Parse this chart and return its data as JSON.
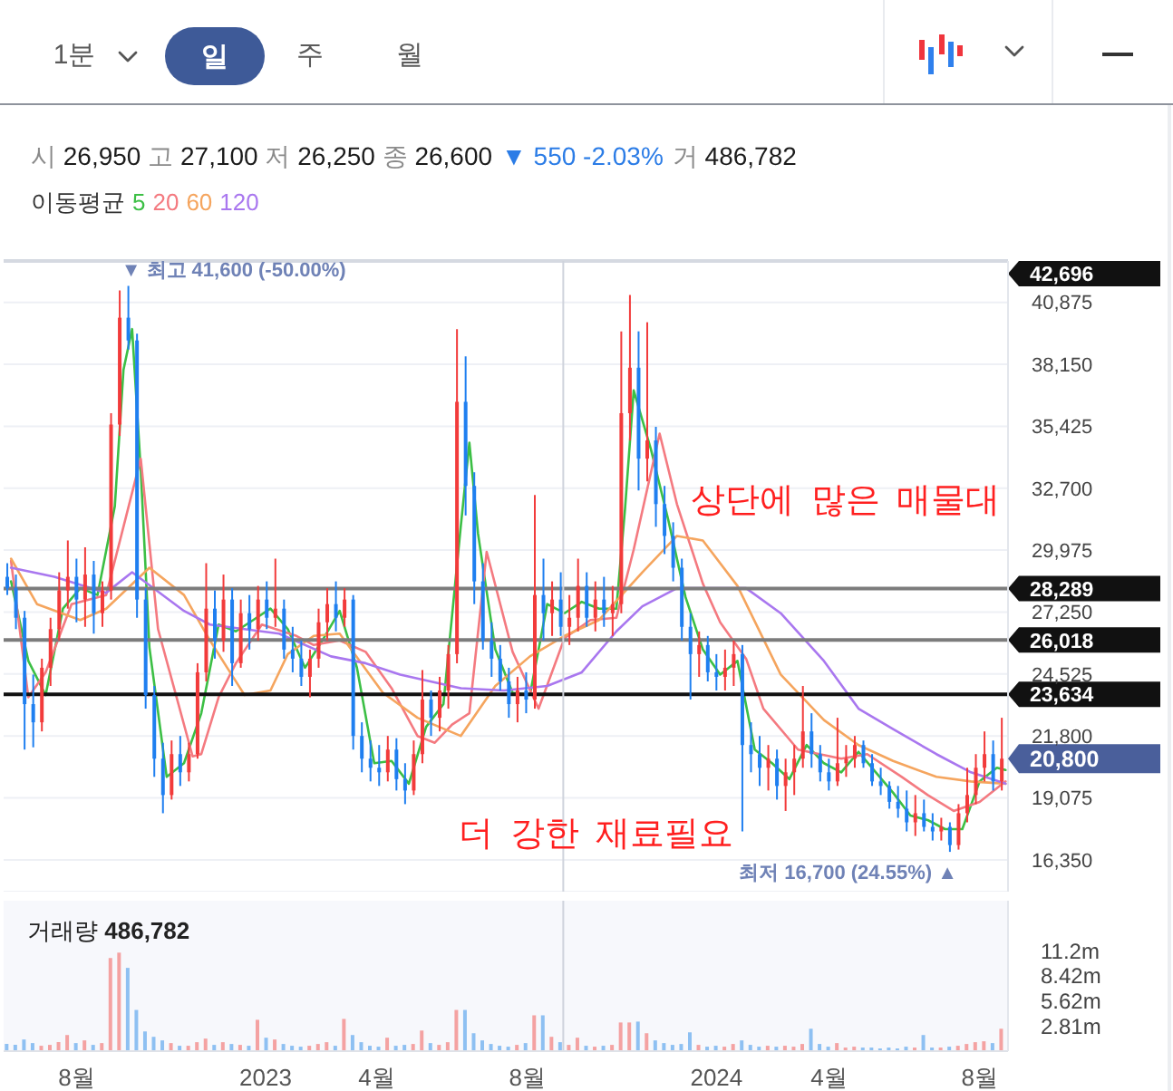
{
  "chart_data": [
    {
      "type": "other",
      "annotations": [
        "1분",
        "일",
        "주",
        "월"
      ]
    },
    {
      "type": "candlestick",
      "subtitle": "시 26,950 고 27,100 저 26,250 종 26,600",
      "legend_title": "이동평균",
      "legend": "top left",
      "x": [
        "2022-06-06",
        "2022-06-13",
        "2022-06-20",
        "2022-06-27",
        "2022-07-04",
        "2022-07-11",
        "2022-07-18",
        "2022-07-25",
        "2022-08-01",
        "2022-08-08",
        "2022-08-15",
        "2022-08-22",
        "2022-08-29",
        "2022-09-05",
        "2022-09-12",
        "2022-09-19",
        "2022-09-26",
        "2022-10-03",
        "2022-10-10",
        "2022-10-17",
        "2022-10-24",
        "2022-10-31",
        "2022-11-07",
        "2022-11-14",
        "2022-11-21",
        "2022-11-28",
        "2022-12-05",
        "2022-12-12",
        "2022-12-19",
        "2022-12-26",
        "2023-01-02",
        "2023-01-09",
        "2023-01-16",
        "2023-01-23",
        "2023-01-30",
        "2023-02-06",
        "2023-02-13",
        "2023-02-20",
        "2023-02-27",
        "2023-03-06",
        "2023-03-13",
        "2023-03-20",
        "2023-03-27",
        "2023-04-03",
        "2023-04-10",
        "2023-04-17",
        "2023-04-24",
        "2023-05-01",
        "2023-05-08",
        "2023-05-15",
        "2023-05-22",
        "2023-05-29",
        "2023-06-05",
        "2023-06-12",
        "2023-06-19",
        "2023-06-26",
        "2023-07-03",
        "2023-07-10",
        "2023-07-17",
        "2023-07-24",
        "2023-07-31",
        "2023-08-07",
        "2023-08-14",
        "2023-08-21",
        "2023-08-28",
        "2023-09-04",
        "2023-09-11",
        "2023-09-18",
        "2023-09-25",
        "2023-10-02",
        "2023-10-09",
        "2023-10-16",
        "2023-10-23",
        "2023-10-30",
        "2023-11-06",
        "2023-11-13",
        "2023-11-20",
        "2023-11-27",
        "2023-12-04",
        "2023-12-11",
        "2023-12-18",
        "2023-12-25",
        "2024-01-01",
        "2024-01-08",
        "2024-01-15",
        "2024-01-22",
        "2024-01-29",
        "2024-02-05",
        "2024-02-12",
        "2024-02-19",
        "2024-02-26",
        "2024-03-04",
        "2024-03-11",
        "2024-03-18",
        "2024-03-25",
        "2024-04-01",
        "2024-04-08",
        "2024-04-15",
        "2024-04-22",
        "2024-04-29",
        "2024-05-06",
        "2024-05-13",
        "2024-05-20",
        "2024-05-27",
        "2024-06-03",
        "2024-06-10",
        "2024-06-17",
        "2024-06-24",
        "2024-07-01",
        "2024-07-08",
        "2024-07-15",
        "2024-07-22",
        "2024-07-29",
        "2024-08-05",
        "2024-08-12",
        "2024-08-19"
      ],
      "ohlc": [
        [
          28800,
          29400,
          28000,
          28300
        ],
        [
          28300,
          28900,
          26500,
          27000
        ],
        [
          27000,
          27300,
          21200,
          23200
        ],
        [
          23200,
          24500,
          21300,
          22400
        ],
        [
          22400,
          25200,
          22000,
          24800
        ],
        [
          24800,
          27000,
          24000,
          26500
        ],
        [
          26500,
          29000,
          26000,
          28200
        ],
        [
          28200,
          30400,
          27400,
          28800
        ],
        [
          28800,
          29600,
          26800,
          27800
        ],
        [
          27800,
          30100,
          26600,
          28900
        ],
        [
          28900,
          29500,
          26300,
          27200
        ],
        [
          27200,
          28600,
          26600,
          28200
        ],
        [
          28200,
          36000,
          27800,
          35500
        ],
        [
          35500,
          41400,
          35000,
          40200
        ],
        [
          40200,
          41600,
          38800,
          39200
        ],
        [
          39200,
          39500,
          27000,
          27800
        ],
        [
          27800,
          28300,
          23000,
          23600
        ],
        [
          23600,
          24000,
          20000,
          20800
        ],
        [
          20800,
          21500,
          18400,
          19200
        ],
        [
          19200,
          21600,
          19000,
          21000
        ],
        [
          21000,
          21800,
          19600,
          20200
        ],
        [
          20200,
          21500,
          19800,
          21000
        ],
        [
          21000,
          25000,
          20800,
          24600
        ],
        [
          24600,
          29400,
          24200,
          27400
        ],
        [
          27400,
          28200,
          25200,
          26000
        ],
        [
          26000,
          28900,
          25500,
          27800
        ],
        [
          27800,
          28300,
          24000,
          25000
        ],
        [
          25000,
          27800,
          24800,
          27200
        ],
        [
          27200,
          28000,
          25600,
          26500
        ],
        [
          26500,
          28400,
          26000,
          27800
        ],
        [
          27800,
          28600,
          26500,
          27000
        ],
        [
          27000,
          29600,
          26600,
          27400
        ],
        [
          27400,
          27800,
          25200,
          25600
        ],
        [
          25600,
          26600,
          24600,
          25200
        ],
        [
          25200,
          26000,
          24000,
          24400
        ],
        [
          24400,
          25600,
          23500,
          25200
        ],
        [
          25200,
          27400,
          24800,
          26800
        ],
        [
          26800,
          28300,
          26000,
          27600
        ],
        [
          27600,
          28600,
          26400,
          27000
        ],
        [
          27000,
          28300,
          26600,
          27800
        ],
        [
          27800,
          28000,
          21200,
          21800
        ],
        [
          21800,
          22400,
          20200,
          20800
        ],
        [
          20800,
          21600,
          19800,
          20400
        ],
        [
          20400,
          21400,
          19600,
          20200
        ],
        [
          20200,
          21800,
          19800,
          21200
        ],
        [
          21200,
          21700,
          19400,
          19900
        ],
        [
          19900,
          20600,
          18800,
          19400
        ],
        [
          19400,
          21600,
          19200,
          21000
        ],
        [
          21000,
          24700,
          20600,
          23400
        ],
        [
          23400,
          23800,
          21800,
          22600
        ],
        [
          22600,
          24400,
          22000,
          23800
        ],
        [
          23800,
          25800,
          23000,
          25400
        ],
        [
          25400,
          39700,
          25000,
          36500
        ],
        [
          36500,
          38500,
          31500,
          32800
        ],
        [
          32800,
          33400,
          27600,
          28600
        ],
        [
          28600,
          29400,
          25600,
          26000
        ],
        [
          26000,
          26800,
          24400,
          25200
        ],
        [
          25200,
          25800,
          23800,
          24200
        ],
        [
          24200,
          24800,
          22600,
          23200
        ],
        [
          23200,
          24400,
          22400,
          23800
        ],
        [
          23800,
          24600,
          22800,
          23400
        ],
        [
          23400,
          32400,
          23000,
          28000
        ],
        [
          28000,
          29600,
          26000,
          27200
        ],
        [
          27200,
          28600,
          26200,
          27800
        ],
        [
          27800,
          29000,
          26200,
          26600
        ],
        [
          26600,
          28000,
          25800,
          27000
        ],
        [
          27000,
          29600,
          26400,
          28400
        ],
        [
          28400,
          29000,
          26600,
          27000
        ],
        [
          27000,
          28600,
          26400,
          27800
        ],
        [
          27800,
          28800,
          26600,
          27200
        ],
        [
          27200,
          28400,
          26200,
          27600
        ],
        [
          27600,
          39600,
          27200,
          36000
        ],
        [
          36000,
          41200,
          34800,
          38000
        ],
        [
          38000,
          39600,
          32600,
          34000
        ],
        [
          34000,
          40000,
          33000,
          34800
        ],
        [
          34800,
          35400,
          31000,
          32000
        ],
        [
          32000,
          32800,
          29800,
          30600
        ],
        [
          30600,
          31200,
          28600,
          29200
        ],
        [
          29200,
          29600,
          26000,
          26600
        ],
        [
          26600,
          27200,
          23400,
          25400
        ],
        [
          25400,
          26400,
          24400,
          25800
        ],
        [
          25800,
          26200,
          24200,
          24600
        ],
        [
          24600,
          25400,
          23800,
          24400
        ],
        [
          24400,
          25600,
          23800,
          24800
        ],
        [
          24800,
          26000,
          24000,
          25400
        ],
        [
          25400,
          25800,
          17600,
          21400
        ],
        [
          21400,
          22400,
          20200,
          21000
        ],
        [
          21000,
          21800,
          19600,
          20400
        ],
        [
          20400,
          21400,
          19400,
          20800
        ],
        [
          20800,
          21200,
          19000,
          19600
        ],
        [
          19600,
          20800,
          18500,
          20200
        ],
        [
          20200,
          21400,
          19200,
          20800
        ],
        [
          20800,
          24000,
          20400,
          22000
        ],
        [
          22000,
          22800,
          20400,
          21000
        ],
        [
          21000,
          21400,
          19800,
          20200
        ],
        [
          20200,
          20800,
          19400,
          19800
        ],
        [
          19800,
          22600,
          19600,
          20600
        ],
        [
          20600,
          21400,
          20000,
          20800
        ],
        [
          20800,
          21800,
          20400,
          21400
        ],
        [
          21400,
          21600,
          20400,
          20600
        ],
        [
          20600,
          21000,
          19600,
          19800
        ],
        [
          19800,
          20400,
          19200,
          19600
        ],
        [
          19600,
          19800,
          18600,
          18900
        ],
        [
          18900,
          19600,
          18200,
          18600
        ],
        [
          18600,
          19400,
          17600,
          18000
        ],
        [
          18000,
          19200,
          17400,
          18400
        ],
        [
          18400,
          19000,
          17600,
          17800
        ],
        [
          17800,
          18400,
          17200,
          17600
        ],
        [
          17600,
          18200,
          17200,
          17800
        ],
        [
          17800,
          18000,
          16700,
          17000
        ],
        [
          17000,
          18800,
          16800,
          18400
        ],
        [
          18400,
          20400,
          18000,
          19200
        ],
        [
          19200,
          21000,
          18800,
          20400
        ],
        [
          20400,
          22000,
          19800,
          21000
        ],
        [
          21000,
          21600,
          19400,
          19800
        ],
        [
          19800,
          22600,
          19400,
          20800
        ]
      ],
      "colors": [
        "#1f7ff0",
        "#1f7ff0",
        "#1f7ff0",
        "#1f7ff0",
        "#f23b3b",
        "#f23b3b",
        "#f23b3b",
        "#f23b3b",
        "#1f7ff0",
        "#f23b3b",
        "#1f7ff0",
        "#f23b3b",
        "#f23b3b",
        "#f23b3b",
        "#1f7ff0",
        "#1f7ff0",
        "#1f7ff0",
        "#1f7ff0",
        "#1f7ff0",
        "#f23b3b",
        "#1f7ff0",
        "#f23b3b",
        "#f23b3b",
        "#f23b3b",
        "#1f7ff0",
        "#f23b3b",
        "#1f7ff0",
        "#f23b3b",
        "#1f7ff0",
        "#f23b3b",
        "#1f7ff0",
        "#f23b3b",
        "#1f7ff0",
        "#1f7ff0",
        "#1f7ff0",
        "#f23b3b",
        "#f23b3b",
        "#f23b3b",
        "#1f7ff0",
        "#f23b3b",
        "#1f7ff0",
        "#1f7ff0",
        "#1f7ff0",
        "#1f7ff0",
        "#f23b3b",
        "#1f7ff0",
        "#1f7ff0",
        "#f23b3b",
        "#f23b3b",
        "#1f7ff0",
        "#f23b3b",
        "#f23b3b",
        "#f23b3b",
        "#1f7ff0",
        "#1f7ff0",
        "#1f7ff0",
        "#1f7ff0",
        "#1f7ff0",
        "#1f7ff0",
        "#f23b3b",
        "#1f7ff0",
        "#f23b3b",
        "#1f7ff0",
        "#f23b3b",
        "#1f7ff0",
        "#f23b3b",
        "#f23b3b",
        "#1f7ff0",
        "#f23b3b",
        "#1f7ff0",
        "#f23b3b",
        "#f23b3b",
        "#f23b3b",
        "#1f7ff0",
        "#f23b3b",
        "#1f7ff0",
        "#1f7ff0",
        "#1f7ff0",
        "#1f7ff0",
        "#1f7ff0",
        "#f23b3b",
        "#1f7ff0",
        "#1f7ff0",
        "#f23b3b",
        "#f23b3b",
        "#1f7ff0",
        "#1f7ff0",
        "#1f7ff0",
        "#f23b3b",
        "#1f7ff0",
        "#f23b3b",
        "#f23b3b",
        "#f23b3b",
        "#1f7ff0",
        "#1f7ff0",
        "#1f7ff0",
        "#f23b3b",
        "#f23b3b",
        "#f23b3b",
        "#1f7ff0",
        "#1f7ff0",
        "#1f7ff0",
        "#1f7ff0",
        "#1f7ff0",
        "#1f7ff0",
        "#f23b3b",
        "#1f7ff0",
        "#1f7ff0",
        "#f23b3b",
        "#1f7ff0",
        "#f23b3b",
        "#f23b3b",
        "#f23b3b",
        "#f23b3b",
        "#1f7ff0",
        "#f23b3b"
      ],
      "series": [
        {
          "name": "5",
          "type": "line",
          "color": "#3cbf45",
          "x": [
            "2022-06-09",
            "2022-06-23",
            "2022-07-07",
            "2022-07-21",
            "2022-08-04",
            "2022-08-18",
            "2022-09-01",
            "2022-09-08",
            "2022-09-15",
            "2022-09-22",
            "2022-09-29",
            "2022-10-13",
            "2022-10-27",
            "2022-11-10",
            "2022-11-24",
            "2022-12-08",
            "2022-12-22",
            "2023-01-05",
            "2023-01-19",
            "2023-02-02",
            "2023-02-16",
            "2023-03-02",
            "2023-03-16",
            "2023-03-30",
            "2023-04-13",
            "2023-04-27",
            "2023-05-11",
            "2023-05-25",
            "2023-06-08",
            "2023-06-15",
            "2023-06-22",
            "2023-07-06",
            "2023-07-20",
            "2023-08-03",
            "2023-08-17",
            "2023-08-31",
            "2023-09-14",
            "2023-09-28",
            "2023-10-12",
            "2023-10-19",
            "2023-10-26",
            "2023-11-09",
            "2023-11-23",
            "2023-12-07",
            "2023-12-21",
            "2024-01-04",
            "2024-01-18",
            "2024-02-01",
            "2024-02-15",
            "2024-02-29",
            "2024-03-14",
            "2024-03-28",
            "2024-04-11",
            "2024-04-25",
            "2024-05-09",
            "2024-05-23",
            "2024-06-06",
            "2024-06-20",
            "2024-07-04",
            "2024-07-18",
            "2024-08-01",
            "2024-08-15",
            "2024-08-22"
          ],
          "values": [
            28600,
            25100,
            23600,
            27400,
            28300,
            28000,
            31900,
            37900,
            39700,
            33500,
            25700,
            20000,
            20600,
            22800,
            26700,
            26400,
            26900,
            27400,
            26500,
            24800,
            26000,
            27300,
            24800,
            20600,
            20700,
            19700,
            22200,
            23200,
            31000,
            34700,
            30700,
            25600,
            23700,
            23600,
            27600,
            27200,
            27700,
            27400,
            27400,
            31800,
            37000,
            34400,
            31300,
            27900,
            25600,
            24500,
            25100,
            21200,
            20600,
            19900,
            21400,
            20600,
            20200,
            21100,
            20200,
            19300,
            18300,
            18100,
            17700,
            17700,
            19800,
            20400,
            20300
          ]
        },
        {
          "name": "20",
          "type": "line",
          "color": "#f47a80",
          "x": [
            "2022-06-09",
            "2022-06-23",
            "2022-07-07",
            "2022-07-28",
            "2022-08-25",
            "2022-09-22",
            "2022-10-06",
            "2022-11-03",
            "2022-11-10",
            "2022-11-24",
            "2022-12-08",
            "2022-12-29",
            "2023-01-26",
            "2023-02-09",
            "2023-03-02",
            "2023-03-23",
            "2023-04-13",
            "2023-05-04",
            "2023-05-18",
            "2023-06-01",
            "2023-06-15",
            "2023-06-29",
            "2023-07-20",
            "2023-08-10",
            "2023-08-31",
            "2023-09-21",
            "2023-10-12",
            "2023-10-26",
            "2023-11-16",
            "2023-11-30",
            "2023-12-21",
            "2024-01-04",
            "2024-01-25",
            "2024-02-08",
            "2024-03-07",
            "2024-04-11",
            "2024-05-02",
            "2024-05-30",
            "2024-06-20",
            "2024-07-11",
            "2024-08-01",
            "2024-08-22"
          ],
          "values": [
            29500,
            23500,
            24600,
            27600,
            28000,
            34000,
            26500,
            20900,
            21000,
            23500,
            25000,
            26700,
            26200,
            25800,
            26000,
            25500,
            23900,
            21800,
            21500,
            22300,
            22800,
            29900,
            25500,
            23000,
            26100,
            26900,
            27000,
            30000,
            35100,
            32000,
            28500,
            26800,
            25200,
            23000,
            21200,
            20800,
            21000,
            20000,
            19200,
            18500,
            18900,
            19800
          ]
        },
        {
          "name": "60",
          "type": "line",
          "color": "#f5a55e",
          "x": [
            "2022-06-09",
            "2022-06-30",
            "2022-08-04",
            "2022-08-25",
            "2022-09-29",
            "2022-10-27",
            "2022-11-17",
            "2022-12-15",
            "2023-01-05",
            "2023-01-19",
            "2023-02-09",
            "2023-03-02",
            "2023-04-06",
            "2023-05-04",
            "2023-06-08",
            "2023-07-06",
            "2023-08-03",
            "2023-08-31",
            "2023-09-28",
            "2023-11-02",
            "2023-11-30",
            "2023-12-21",
            "2024-01-18",
            "2024-02-22",
            "2024-03-28",
            "2024-04-25",
            "2024-05-23",
            "2024-06-27",
            "2024-07-25",
            "2024-08-22"
          ],
          "values": [
            29600,
            27600,
            26900,
            27400,
            29200,
            28000,
            26000,
            23600,
            23800,
            25400,
            26200,
            26300,
            23700,
            22600,
            21800,
            24000,
            25300,
            26200,
            26900,
            29000,
            30600,
            30400,
            28400,
            24500,
            22500,
            21400,
            20700,
            20000,
            19800,
            19700
          ]
        },
        {
          "name": "120",
          "type": "line",
          "color": "#a977ef",
          "x": [
            "2022-06-09",
            "2022-07-14",
            "2022-08-25",
            "2022-09-15",
            "2022-10-27",
            "2022-11-17",
            "2023-01-12",
            "2023-02-23",
            "2023-03-23",
            "2023-04-20",
            "2023-06-08",
            "2023-07-13",
            "2023-08-17",
            "2023-09-14",
            "2023-10-12",
            "2023-11-02",
            "2023-11-30",
            "2023-12-21",
            "2024-01-25",
            "2024-02-22",
            "2024-03-28",
            "2024-04-25",
            "2024-05-23",
            "2024-06-27",
            "2024-07-25",
            "2024-08-22"
          ],
          "values": [
            29200,
            28800,
            28100,
            29000,
            27300,
            26700,
            26300,
            25300,
            25000,
            24500,
            23900,
            23800,
            24000,
            24600,
            26400,
            27500,
            28300,
            28300,
            28300,
            27200,
            25100,
            23000,
            22100,
            21000,
            20200,
            19700
          ]
        }
      ],
      "xlim": [
        "2022-06-03",
        "2024-08-24"
      ],
      "ylim": [
        14950,
        42696
      ],
      "yticks": [
        {
          "value": 16350,
          "label": "16,350"
        },
        {
          "value": 19075,
          "label": "19,075"
        },
        {
          "value": 21800,
          "label": "21,800"
        },
        {
          "value": 24525,
          "label": "24,525"
        },
        {
          "value": 27250,
          "label": "27,250"
        },
        {
          "value": 29975,
          "label": "29,975"
        },
        {
          "value": 32700,
          "label": "32,700"
        },
        {
          "value": 35425,
          "label": "35,425"
        },
        {
          "value": 38150,
          "label": "38,150"
        },
        {
          "value": 40875,
          "label": "40,875"
        }
      ],
      "grid": "y",
      "tick_labels": "y",
      "marker": "none",
      "ref_lines": [
        {
          "axis": "y",
          "value": 42696,
          "color": "#d5d9e1"
        },
        {
          "axis": "y",
          "value": 28289,
          "color": "#7c7c7c"
        },
        {
          "axis": "y",
          "value": 26018,
          "color": "#7c7c7c"
        },
        {
          "axis": "y",
          "value": 23634,
          "color": "#111111"
        },
        {
          "axis": "x",
          "value": "2023-08-30",
          "color": "#cfd3dc"
        }
      ],
      "annotations": [
        "▼ 550 -2.03%",
        "거 486,782",
        {
          "text": "▼ 최고 41,600 (-50.00%)",
          "x": "2022-09-12",
          "y": 41600
        },
        {
          "text": "최저 16,700 (24.55%) ▲",
          "x": "2024-07-08",
          "y": 16700
        },
        {
          "text": "20,800",
          "x": "2024-08-19",
          "y": 20800
        },
        "42,696",
        "28,289",
        "26,018",
        "23,634",
        "상단에 많은 매물대",
        "더 강한 재료필요"
      ]
    },
    {
      "type": "bar",
      "title": "거래량 486,782",
      "x": [
        "2022-06-06",
        "2022-06-13",
        "2022-06-20",
        "2022-06-27",
        "2022-07-04",
        "2022-07-11",
        "2022-07-18",
        "2022-07-25",
        "2022-08-01",
        "2022-08-08",
        "2022-08-15",
        "2022-08-22",
        "2022-08-29",
        "2022-09-05",
        "2022-09-12",
        "2022-09-19",
        "2022-09-26",
        "2022-10-03",
        "2022-10-10",
        "2022-10-17",
        "2022-10-24",
        "2022-10-31",
        "2022-11-07",
        "2022-11-14",
        "2022-11-21",
        "2022-11-28",
        "2022-12-05",
        "2022-12-12",
        "2022-12-19",
        "2022-12-26",
        "2023-01-02",
        "2023-01-09",
        "2023-01-16",
        "2023-01-23",
        "2023-01-30",
        "2023-02-06",
        "2023-02-13",
        "2023-02-20",
        "2023-02-27",
        "2023-03-06",
        "2023-03-13",
        "2023-03-20",
        "2023-03-27",
        "2023-04-03",
        "2023-04-10",
        "2023-04-17",
        "2023-04-24",
        "2023-05-01",
        "2023-05-08",
        "2023-05-15",
        "2023-05-22",
        "2023-05-29",
        "2023-06-05",
        "2023-06-12",
        "2023-06-19",
        "2023-06-26",
        "2023-07-03",
        "2023-07-10",
        "2023-07-17",
        "2023-07-24",
        "2023-07-31",
        "2023-08-07",
        "2023-08-14",
        "2023-08-21",
        "2023-08-28",
        "2023-09-04",
        "2023-09-11",
        "2023-09-18",
        "2023-09-25",
        "2023-10-02",
        "2023-10-09",
        "2023-10-16",
        "2023-10-23",
        "2023-10-30",
        "2023-11-06",
        "2023-11-13",
        "2023-11-20",
        "2023-11-27",
        "2023-12-04",
        "2023-12-11",
        "2023-12-18",
        "2023-12-25",
        "2024-01-01",
        "2024-01-08",
        "2024-01-15",
        "2024-01-22",
        "2024-01-29",
        "2024-02-05",
        "2024-02-12",
        "2024-02-19",
        "2024-02-26",
        "2024-03-04",
        "2024-03-11",
        "2024-03-18",
        "2024-03-25",
        "2024-04-01",
        "2024-04-08",
        "2024-04-15",
        "2024-04-22",
        "2024-04-29",
        "2024-05-06",
        "2024-05-13",
        "2024-05-20",
        "2024-05-27",
        "2024-06-03",
        "2024-06-10",
        "2024-06-17",
        "2024-06-24",
        "2024-07-01",
        "2024-07-08",
        "2024-07-15",
        "2024-07-22",
        "2024-07-29",
        "2024-08-05",
        "2024-08-12",
        "2024-08-19"
      ],
      "values": [
        0.8,
        0.7,
        1.3,
        0.9,
        0.6,
        0.7,
        1.0,
        1.8,
        0.9,
        1.2,
        0.7,
        0.9,
        10.4,
        11.0,
        9.3,
        4.6,
        2.2,
        1.6,
        1.2,
        0.9,
        0.6,
        0.6,
        1.0,
        1.4,
        0.7,
        1.0,
        0.8,
        0.7,
        0.6,
        3.5,
        1.5,
        1.3,
        0.8,
        0.6,
        0.5,
        0.6,
        0.8,
        1.0,
        0.6,
        3.6,
        1.8,
        1.0,
        0.6,
        0.5,
        1.5,
        0.6,
        0.7,
        0.8,
        2.3,
        0.9,
        0.7,
        1.0,
        4.6,
        4.6,
        2.0,
        1.2,
        0.8,
        0.6,
        0.5,
        0.7,
        0.9,
        4.0,
        4.0,
        1.6,
        1.0,
        0.7,
        1.5,
        0.6,
        0.5,
        0.6,
        0.7,
        3.2,
        3.2,
        3.3,
        2.0,
        1.2,
        0.9,
        0.7,
        0.8,
        2.1,
        0.7,
        0.5,
        0.6,
        0.5,
        0.8,
        1.2,
        0.7,
        0.5,
        0.6,
        0.5,
        0.6,
        0.5,
        0.8,
        2.5,
        0.8,
        0.5,
        0.9,
        0.4,
        0.5,
        0.4,
        0.4,
        0.3,
        0.4,
        0.3,
        0.5,
        0.4,
        1.8,
        0.4,
        0.4,
        0.5,
        0.6,
        0.8,
        1.0,
        1.1,
        0.9,
        2.5
      ],
      "colors": [
        "#8ec0f2",
        "#8ec0f2",
        "#8ec0f2",
        "#8ec0f2",
        "#f4a2a2",
        "#f4a2a2",
        "#f4a2a2",
        "#f4a2a2",
        "#8ec0f2",
        "#f4a2a2",
        "#8ec0f2",
        "#f4a2a2",
        "#f4a2a2",
        "#f4a2a2",
        "#8ec0f2",
        "#8ec0f2",
        "#8ec0f2",
        "#8ec0f2",
        "#8ec0f2",
        "#f4a2a2",
        "#8ec0f2",
        "#f4a2a2",
        "#f4a2a2",
        "#f4a2a2",
        "#8ec0f2",
        "#f4a2a2",
        "#8ec0f2",
        "#f4a2a2",
        "#8ec0f2",
        "#f4a2a2",
        "#8ec0f2",
        "#f4a2a2",
        "#8ec0f2",
        "#8ec0f2",
        "#8ec0f2",
        "#f4a2a2",
        "#f4a2a2",
        "#f4a2a2",
        "#8ec0f2",
        "#f4a2a2",
        "#8ec0f2",
        "#8ec0f2",
        "#8ec0f2",
        "#8ec0f2",
        "#f4a2a2",
        "#8ec0f2",
        "#8ec0f2",
        "#f4a2a2",
        "#f4a2a2",
        "#8ec0f2",
        "#f4a2a2",
        "#f4a2a2",
        "#f4a2a2",
        "#8ec0f2",
        "#8ec0f2",
        "#8ec0f2",
        "#8ec0f2",
        "#8ec0f2",
        "#8ec0f2",
        "#f4a2a2",
        "#8ec0f2",
        "#f4a2a2",
        "#8ec0f2",
        "#f4a2a2",
        "#8ec0f2",
        "#f4a2a2",
        "#f4a2a2",
        "#8ec0f2",
        "#f4a2a2",
        "#8ec0f2",
        "#f4a2a2",
        "#f4a2a2",
        "#f4a2a2",
        "#8ec0f2",
        "#f4a2a2",
        "#8ec0f2",
        "#8ec0f2",
        "#8ec0f2",
        "#8ec0f2",
        "#8ec0f2",
        "#f4a2a2",
        "#8ec0f2",
        "#8ec0f2",
        "#f4a2a2",
        "#f4a2a2",
        "#8ec0f2",
        "#8ec0f2",
        "#8ec0f2",
        "#f4a2a2",
        "#8ec0f2",
        "#f4a2a2",
        "#f4a2a2",
        "#f4a2a2",
        "#8ec0f2",
        "#8ec0f2",
        "#8ec0f2",
        "#f4a2a2",
        "#f4a2a2",
        "#f4a2a2",
        "#8ec0f2",
        "#8ec0f2",
        "#8ec0f2",
        "#8ec0f2",
        "#8ec0f2",
        "#8ec0f2",
        "#f4a2a2",
        "#8ec0f2",
        "#8ec0f2",
        "#f4a2a2",
        "#8ec0f2",
        "#f4a2a2",
        "#f4a2a2",
        "#f4a2a2",
        "#f4a2a2",
        "#8ec0f2",
        "#f4a2a2"
      ],
      "xlim": [
        "2022-06-03",
        "2024-08-24"
      ],
      "xticks": [
        {
          "value": "2022-08-01",
          "label": "8월"
        },
        {
          "value": "2023-01-01",
          "label": "2023"
        },
        {
          "value": "2023-04-01",
          "label": "4월"
        },
        {
          "value": "2023-08-01",
          "label": "8월"
        },
        {
          "value": "2024-01-01",
          "label": "2024"
        },
        {
          "value": "2024-04-01",
          "label": "4월"
        },
        {
          "value": "2024-08-01",
          "label": "8월"
        }
      ],
      "ylim": [
        0,
        16.8
      ],
      "yticks": [
        {
          "value": 2.81,
          "label": "2.81m"
        },
        {
          "value": 5.62,
          "label": "5.62m"
        },
        {
          "value": 8.42,
          "label": "8.42m"
        },
        {
          "value": 11.2,
          "label": "11.2m"
        }
      ],
      "ref_lines": [
        {
          "axis": "x",
          "value": "2023-08-30",
          "color": "#cfd3dc"
        }
      ]
    }
  ]
}
